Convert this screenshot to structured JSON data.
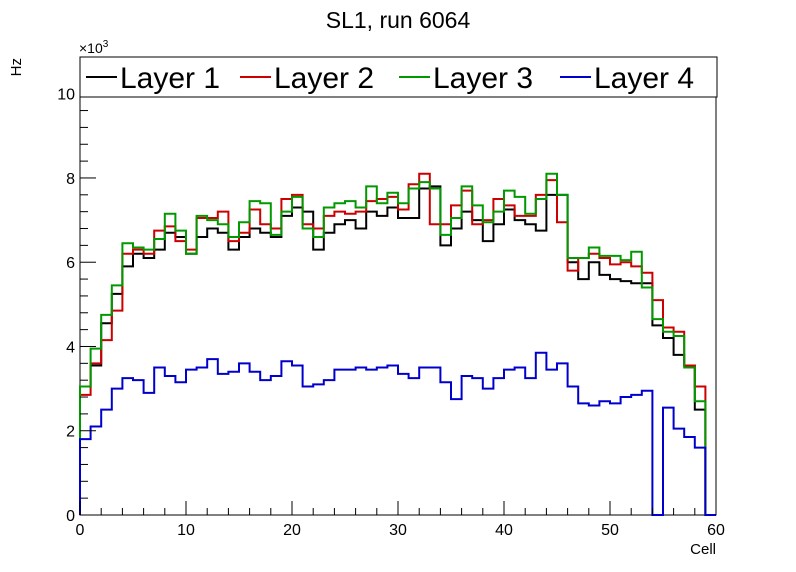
{
  "chart_data": {
    "type": "line",
    "title": "SL1, run 6064",
    "xlabel": "Cell",
    "ylabel": "Hz",
    "y_multiplier": "×10",
    "y_multiplier_exp": "3",
    "xlim": [
      0,
      60
    ],
    "ylim": [
      0,
      10.8
    ],
    "x_ticks": [
      0,
      10,
      20,
      30,
      40,
      50,
      60
    ],
    "y_ticks": [
      0,
      2,
      4,
      6,
      8,
      10
    ],
    "grid": false,
    "legend": "top",
    "bin_width": 1,
    "series": [
      {
        "name": "Layer 1",
        "color": "#000000",
        "values": [
          3.05,
          3.55,
          4.55,
          5.25,
          5.9,
          6.2,
          6.1,
          6.3,
          6.7,
          6.6,
          6.2,
          6.6,
          6.8,
          6.7,
          6.3,
          6.6,
          6.8,
          6.7,
          6.6,
          7.1,
          7.3,
          7.2,
          6.3,
          6.7,
          6.9,
          7.0,
          6.8,
          7.2,
          7.1,
          7.3,
          7.05,
          7.05,
          7.75,
          7.8,
          6.4,
          6.8,
          7.2,
          7.0,
          6.5,
          6.9,
          7.25,
          7.0,
          6.9,
          6.75,
          7.6,
          7.6,
          6.0,
          5.6,
          6.0,
          5.7,
          5.6,
          5.55,
          5.5,
          5.5,
          4.5,
          4.2,
          3.8,
          3.55,
          2.5,
          0
        ]
      },
      {
        "name": "Layer 2",
        "color": "#cc0000",
        "values": [
          2.85,
          3.6,
          4.15,
          4.85,
          6.2,
          6.3,
          6.2,
          6.75,
          6.85,
          6.5,
          6.3,
          7.05,
          7.05,
          7.2,
          6.5,
          6.7,
          7.25,
          6.9,
          6.8,
          7.5,
          7.6,
          6.9,
          6.8,
          7.1,
          7.2,
          7.15,
          7.2,
          7.45,
          7.5,
          7.55,
          7.25,
          7.85,
          8.1,
          6.9,
          6.9,
          7.35,
          7.7,
          6.9,
          7.0,
          7.5,
          7.35,
          7.1,
          7.1,
          7.6,
          7.95,
          6.95,
          5.8,
          6.1,
          6.2,
          6.1,
          5.95,
          6.0,
          5.9,
          5.75,
          5.1,
          4.45,
          4.35,
          3.55,
          3.05,
          0
        ]
      },
      {
        "name": "Layer 3",
        "color": "#009900",
        "values": [
          3.05,
          3.95,
          4.75,
          5.45,
          6.45,
          6.35,
          6.3,
          6.55,
          7.15,
          6.75,
          6.2,
          7.1,
          7.0,
          6.9,
          6.6,
          6.95,
          7.45,
          7.4,
          6.65,
          7.2,
          7.55,
          6.8,
          6.6,
          7.3,
          7.4,
          7.45,
          7.3,
          7.8,
          7.4,
          7.65,
          7.4,
          7.75,
          7.9,
          7.75,
          6.65,
          7.05,
          7.8,
          7.35,
          6.95,
          7.2,
          7.7,
          7.55,
          7.15,
          7.5,
          8.1,
          7.6,
          6.1,
          6.1,
          6.35,
          6.15,
          6.15,
          6.05,
          6.25,
          5.4,
          4.65,
          4.35,
          4.25,
          3.5,
          2.7,
          0
        ]
      },
      {
        "name": "Layer 4",
        "color": "#0000cc",
        "values": [
          1.8,
          2.1,
          2.5,
          3.0,
          3.25,
          3.2,
          2.9,
          3.5,
          3.3,
          3.15,
          3.45,
          3.5,
          3.7,
          3.35,
          3.4,
          3.6,
          3.4,
          3.2,
          3.3,
          3.65,
          3.55,
          3.05,
          3.1,
          3.2,
          3.45,
          3.45,
          3.5,
          3.45,
          3.5,
          3.55,
          3.35,
          3.25,
          3.5,
          3.5,
          3.15,
          2.75,
          3.3,
          3.25,
          3.0,
          3.25,
          3.45,
          3.5,
          3.25,
          3.85,
          3.45,
          3.6,
          3.05,
          2.65,
          2.6,
          2.7,
          2.65,
          2.8,
          2.85,
          2.95,
          0,
          2.55,
          2.05,
          1.85,
          1.6,
          0
        ]
      }
    ]
  }
}
